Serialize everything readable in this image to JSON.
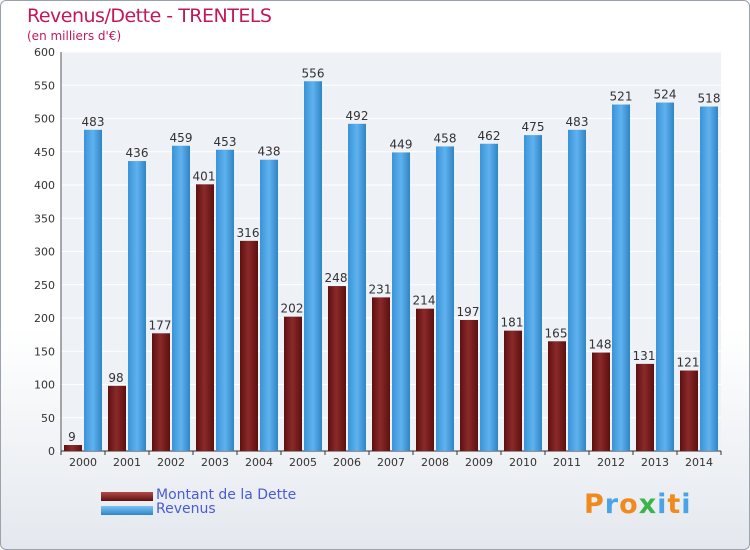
{
  "header": {
    "title": "Revenus/Dette - TRENTELS",
    "subtitle": "(en milliers d'€)"
  },
  "colors": {
    "dette": "#7b1a1a",
    "revenus": "#4aa3e6",
    "title": "#c2185b",
    "legend_text": "#4a5cd6"
  },
  "legend": {
    "items": [
      {
        "label": "Montant de la Dette"
      },
      {
        "label": "Revenus"
      }
    ]
  },
  "logo": {
    "text": "Proxiti"
  },
  "chart_data": {
    "type": "bar",
    "title": "Revenus/Dette - TRENTELS",
    "subtitle": "(en milliers d'€)",
    "xlabel": "",
    "ylabel": "",
    "ylim": [
      0,
      600
    ],
    "yticks": [
      0,
      50,
      100,
      150,
      200,
      250,
      300,
      350,
      400,
      450,
      500,
      550,
      600
    ],
    "grid": true,
    "legend_position": "bottom-left",
    "categories": [
      "2000",
      "2001",
      "2002",
      "2003",
      "2004",
      "2005",
      "2006",
      "2007",
      "2008",
      "2009",
      "2010",
      "2011",
      "2012",
      "2013",
      "2014"
    ],
    "series": [
      {
        "name": "Montant de la Dette",
        "values": [
          9,
          98,
          177,
          401,
          316,
          202,
          248,
          231,
          214,
          197,
          181,
          165,
          148,
          131,
          121
        ]
      },
      {
        "name": "Revenus",
        "values": [
          483,
          436,
          459,
          453,
          438,
          556,
          492,
          449,
          458,
          462,
          475,
          483,
          521,
          524,
          518
        ]
      }
    ]
  }
}
